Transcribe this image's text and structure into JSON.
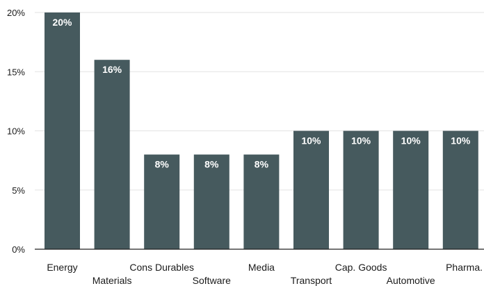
{
  "chart_data": {
    "type": "bar",
    "title": "",
    "xlabel": "",
    "ylabel": "",
    "categories": [
      "Energy",
      "Materials",
      "Cons Durables",
      "Software",
      "Media",
      "Transport",
      "Cap. Goods",
      "Automotive",
      "Pharma."
    ],
    "values": [
      20,
      16,
      8,
      8,
      8,
      10,
      10,
      10,
      10
    ],
    "data_labels": [
      "20%",
      "16%",
      "8%",
      "8%",
      "8%",
      "10%",
      "10%",
      "10%",
      "10%"
    ],
    "ylim": [
      0,
      20
    ],
    "yticks": [
      0,
      5,
      10,
      15,
      20
    ],
    "ytick_labels": [
      "0%",
      "5%",
      "10%",
      "15%",
      "20%"
    ],
    "grid": true,
    "bar_color": "#465a5e",
    "label_color": "#ffffff"
  }
}
